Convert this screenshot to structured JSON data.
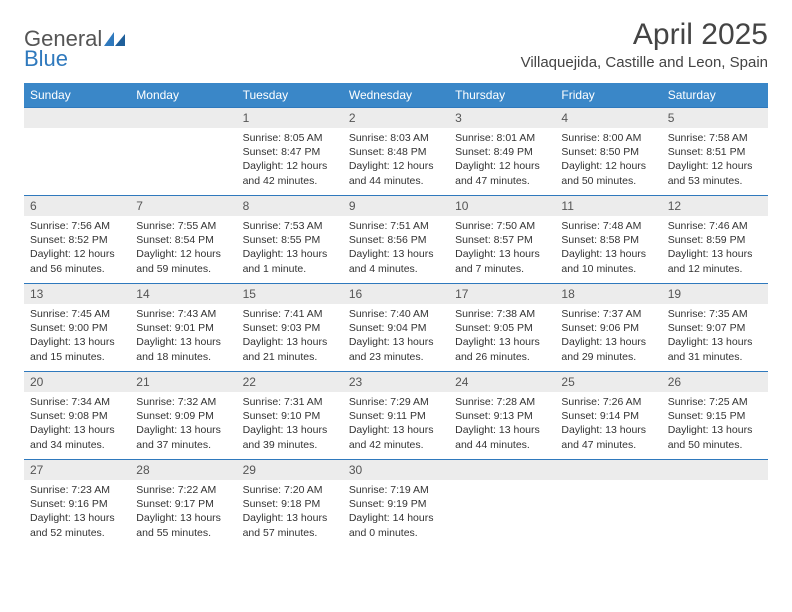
{
  "brand": {
    "part1": "General",
    "part2": "Blue"
  },
  "title": "April 2025",
  "location": "Villaquejida, Castille and Leon, Spain",
  "colors": {
    "header_bg": "#3a87c8",
    "header_text": "#ffffff",
    "daynum_bg": "#ececec",
    "daynum_border": "#2f79bd",
    "body_text": "#333333",
    "logo_gray": "#555555",
    "logo_blue": "#2f79bd"
  },
  "weekdays": [
    "Sunday",
    "Monday",
    "Tuesday",
    "Wednesday",
    "Thursday",
    "Friday",
    "Saturday"
  ],
  "weeks": [
    [
      {
        "n": "",
        "empty": true
      },
      {
        "n": "",
        "empty": true
      },
      {
        "n": "1",
        "sr": "8:05 AM",
        "ss": "8:47 PM",
        "dl": "12 hours and 42 minutes."
      },
      {
        "n": "2",
        "sr": "8:03 AM",
        "ss": "8:48 PM",
        "dl": "12 hours and 44 minutes."
      },
      {
        "n": "3",
        "sr": "8:01 AM",
        "ss": "8:49 PM",
        "dl": "12 hours and 47 minutes."
      },
      {
        "n": "4",
        "sr": "8:00 AM",
        "ss": "8:50 PM",
        "dl": "12 hours and 50 minutes."
      },
      {
        "n": "5",
        "sr": "7:58 AM",
        "ss": "8:51 PM",
        "dl": "12 hours and 53 minutes."
      }
    ],
    [
      {
        "n": "6",
        "sr": "7:56 AM",
        "ss": "8:52 PM",
        "dl": "12 hours and 56 minutes."
      },
      {
        "n": "7",
        "sr": "7:55 AM",
        "ss": "8:54 PM",
        "dl": "12 hours and 59 minutes."
      },
      {
        "n": "8",
        "sr": "7:53 AM",
        "ss": "8:55 PM",
        "dl": "13 hours and 1 minute."
      },
      {
        "n": "9",
        "sr": "7:51 AM",
        "ss": "8:56 PM",
        "dl": "13 hours and 4 minutes."
      },
      {
        "n": "10",
        "sr": "7:50 AM",
        "ss": "8:57 PM",
        "dl": "13 hours and 7 minutes."
      },
      {
        "n": "11",
        "sr": "7:48 AM",
        "ss": "8:58 PM",
        "dl": "13 hours and 10 minutes."
      },
      {
        "n": "12",
        "sr": "7:46 AM",
        "ss": "8:59 PM",
        "dl": "13 hours and 12 minutes."
      }
    ],
    [
      {
        "n": "13",
        "sr": "7:45 AM",
        "ss": "9:00 PM",
        "dl": "13 hours and 15 minutes."
      },
      {
        "n": "14",
        "sr": "7:43 AM",
        "ss": "9:01 PM",
        "dl": "13 hours and 18 minutes."
      },
      {
        "n": "15",
        "sr": "7:41 AM",
        "ss": "9:03 PM",
        "dl": "13 hours and 21 minutes."
      },
      {
        "n": "16",
        "sr": "7:40 AM",
        "ss": "9:04 PM",
        "dl": "13 hours and 23 minutes."
      },
      {
        "n": "17",
        "sr": "7:38 AM",
        "ss": "9:05 PM",
        "dl": "13 hours and 26 minutes."
      },
      {
        "n": "18",
        "sr": "7:37 AM",
        "ss": "9:06 PM",
        "dl": "13 hours and 29 minutes."
      },
      {
        "n": "19",
        "sr": "7:35 AM",
        "ss": "9:07 PM",
        "dl": "13 hours and 31 minutes."
      }
    ],
    [
      {
        "n": "20",
        "sr": "7:34 AM",
        "ss": "9:08 PM",
        "dl": "13 hours and 34 minutes."
      },
      {
        "n": "21",
        "sr": "7:32 AM",
        "ss": "9:09 PM",
        "dl": "13 hours and 37 minutes."
      },
      {
        "n": "22",
        "sr": "7:31 AM",
        "ss": "9:10 PM",
        "dl": "13 hours and 39 minutes."
      },
      {
        "n": "23",
        "sr": "7:29 AM",
        "ss": "9:11 PM",
        "dl": "13 hours and 42 minutes."
      },
      {
        "n": "24",
        "sr": "7:28 AM",
        "ss": "9:13 PM",
        "dl": "13 hours and 44 minutes."
      },
      {
        "n": "25",
        "sr": "7:26 AM",
        "ss": "9:14 PM",
        "dl": "13 hours and 47 minutes."
      },
      {
        "n": "26",
        "sr": "7:25 AM",
        "ss": "9:15 PM",
        "dl": "13 hours and 50 minutes."
      }
    ],
    [
      {
        "n": "27",
        "sr": "7:23 AM",
        "ss": "9:16 PM",
        "dl": "13 hours and 52 minutes."
      },
      {
        "n": "28",
        "sr": "7:22 AM",
        "ss": "9:17 PM",
        "dl": "13 hours and 55 minutes."
      },
      {
        "n": "29",
        "sr": "7:20 AM",
        "ss": "9:18 PM",
        "dl": "13 hours and 57 minutes."
      },
      {
        "n": "30",
        "sr": "7:19 AM",
        "ss": "9:19 PM",
        "dl": "14 hours and 0 minutes."
      },
      {
        "n": "",
        "empty": true
      },
      {
        "n": "",
        "empty": true
      },
      {
        "n": "",
        "empty": true
      }
    ]
  ],
  "labels": {
    "sunrise": "Sunrise: ",
    "sunset": "Sunset: ",
    "daylight": "Daylight: "
  }
}
